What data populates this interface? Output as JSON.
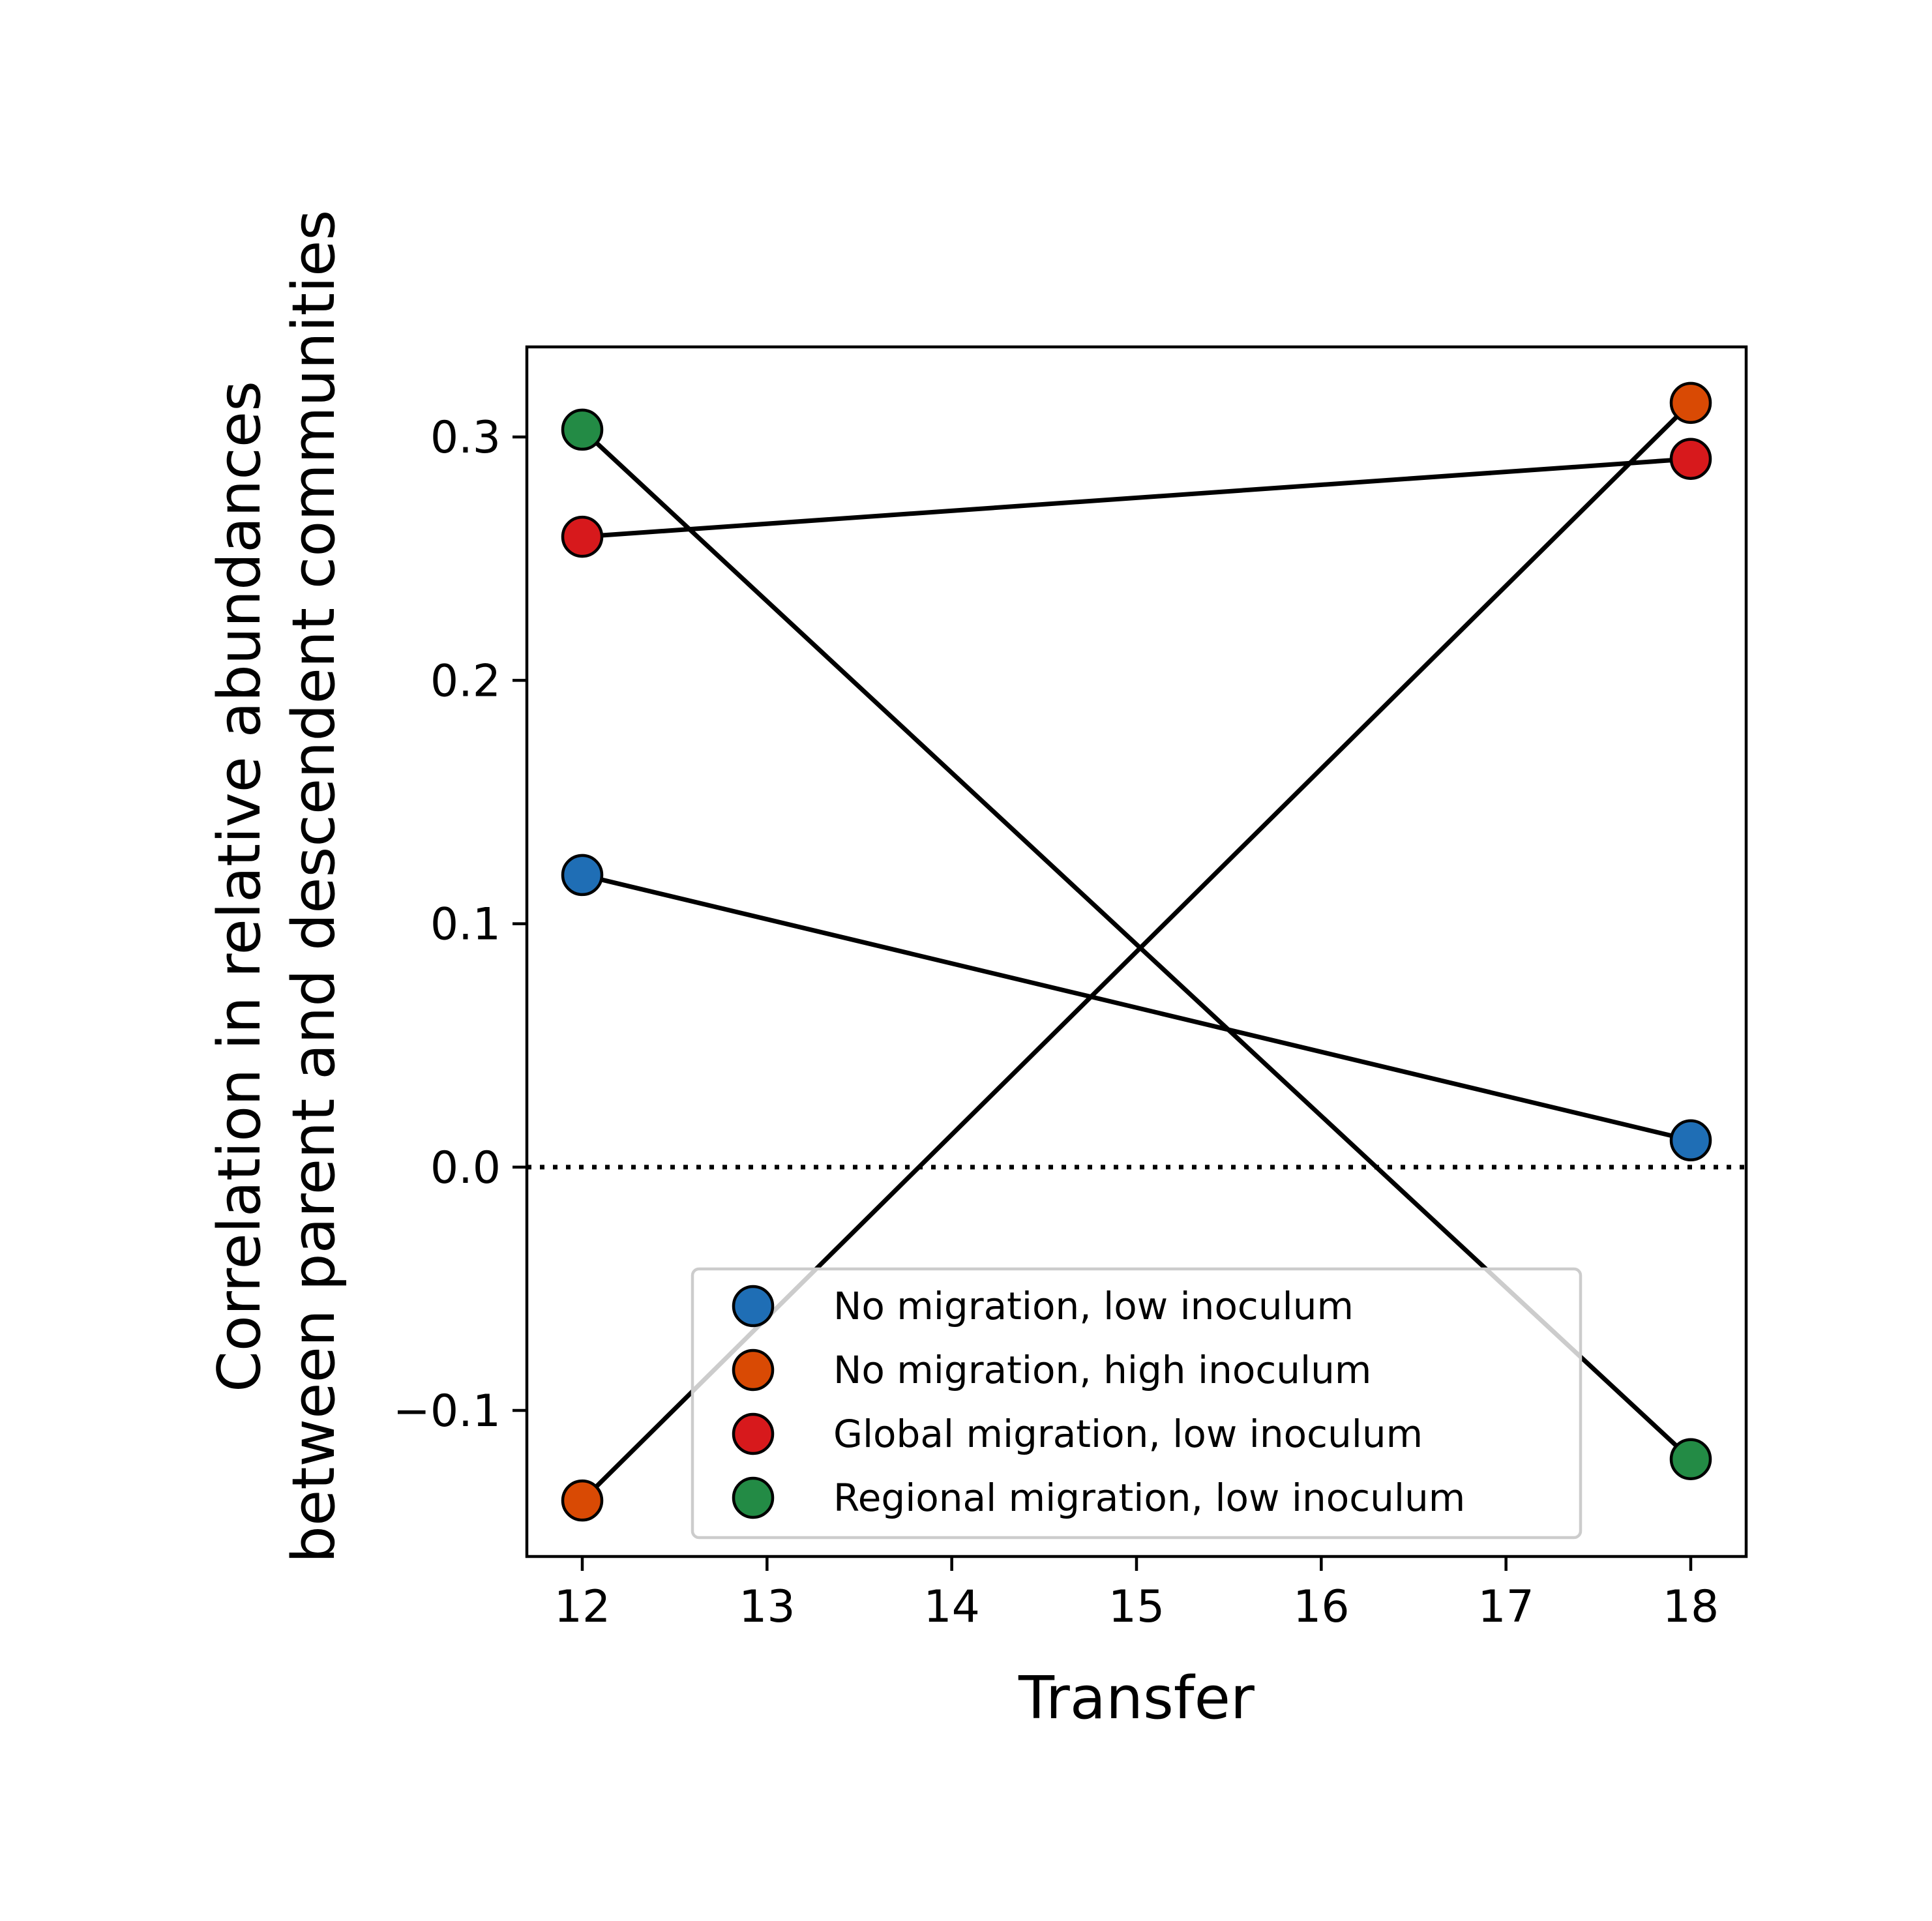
{
  "chart_data": {
    "type": "line",
    "title": "",
    "xlabel": "Transfer",
    "ylabel_line1": "Correlation in relative abundances",
    "ylabel_line2": "between parent and descendent communities",
    "xlim": [
      11.7,
      18.3
    ],
    "ylim": [
      -0.16,
      0.337
    ],
    "x_ticks": [
      12,
      13,
      14,
      15,
      16,
      17,
      18
    ],
    "x_tick_labels": [
      "12",
      "13",
      "14",
      "15",
      "16",
      "17",
      "18"
    ],
    "y_ticks": [
      -0.1,
      0.0,
      0.1,
      0.2,
      0.3
    ],
    "y_tick_labels": [
      "−0.1",
      "0.0",
      "0.1",
      "0.2",
      "0.3"
    ],
    "reference_line": {
      "y": 0.0,
      "style": "dotted",
      "color": "#000000"
    },
    "legend_position": "lower-center",
    "grid": false,
    "series": [
      {
        "name": "No migration, low inoculum",
        "color": "#1f6eb5",
        "x": [
          12,
          18
        ],
        "y": [
          0.12,
          0.011
        ]
      },
      {
        "name": "No migration, high inoculum",
        "color": "#d94a04",
        "x": [
          12,
          18
        ],
        "y": [
          -0.137,
          0.314
        ]
      },
      {
        "name": "Global migration, low inoculum",
        "color": "#d7191c",
        "x": [
          12,
          18
        ],
        "y": [
          0.259,
          0.291
        ]
      },
      {
        "name": "Regional migration, low inoculum",
        "color": "#238b45",
        "x": [
          12,
          18
        ],
        "y": [
          0.303,
          -0.12
        ]
      }
    ]
  }
}
